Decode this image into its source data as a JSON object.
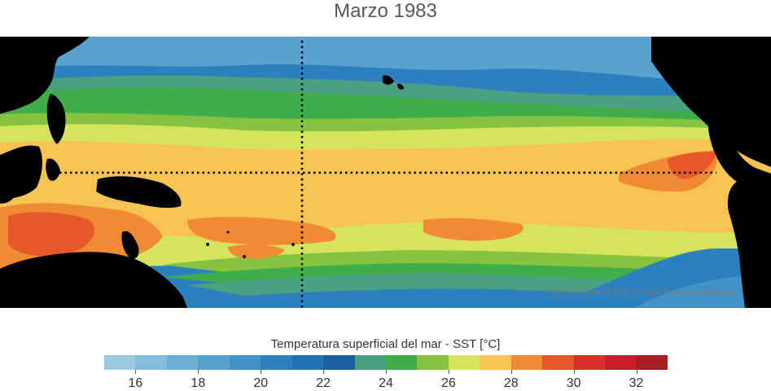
{
  "title": "Marzo 1983",
  "source_note": "Fuente: NOAA OI SST V2 High Resolution Dataset",
  "colorbar": {
    "title": "Temperatura superficial del mar - SST  [°C]",
    "min": 15,
    "max": 33,
    "colors": [
      "#9ecae1",
      "#85bcdc",
      "#6baed6",
      "#5aa1cf",
      "#4292c6",
      "#2b80bd",
      "#2171b5",
      "#1a5f9e",
      "#4aa080",
      "#3fae4a",
      "#86c440",
      "#d5e45c",
      "#f5c453",
      "#f08a33",
      "#e8572a",
      "#d83027",
      "#c81e2b",
      "#a61f22"
    ],
    "ticks": [
      "16",
      "18",
      "20",
      "22",
      "24",
      "26",
      "28",
      "30",
      "32"
    ]
  },
  "map": {
    "colors": {
      "land": "#000000",
      "cold": "#2b80bd",
      "cool": "#6baed6",
      "teal": "#4aa080",
      "green": "#3fae4a",
      "lime": "#86c440",
      "yellow": "#d5e45c",
      "warm": "#f5c453",
      "orange": "#f08a33",
      "red": "#e8572a"
    }
  }
}
